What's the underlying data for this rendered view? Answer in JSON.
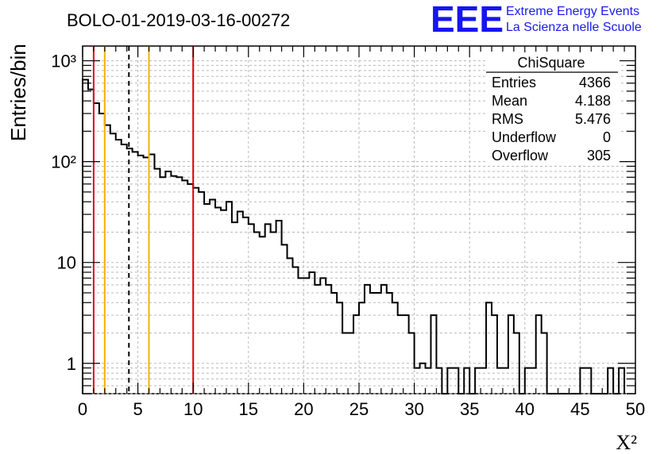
{
  "header": {
    "run_title": "BOLO-01-2019-03-16-00272",
    "logo_letters": "EEE",
    "logo_line1": "Extreme Energy Events",
    "logo_line2": "La Scienza nelle Scuole",
    "logo_color": "#1515f0"
  },
  "stats_box": {
    "title": "ChiSquare",
    "rows": [
      {
        "label": "Entries",
        "value": "4366"
      },
      {
        "label": "Mean",
        "value": "4.188"
      },
      {
        "label": "RMS",
        "value": "5.476"
      },
      {
        "label": "Underflow",
        "value": "0"
      },
      {
        "label": "Overflow",
        "value": "305"
      }
    ]
  },
  "chart_data": {
    "type": "histogram",
    "title": "BOLO-01-2019-03-16-00272",
    "xlabel": "X²",
    "ylabel": "Entries/bin",
    "xlim": [
      0,
      50
    ],
    "ylim": [
      0.5,
      1400
    ],
    "log_y": true,
    "grid": true,
    "bin_width": 0.5,
    "x_ticks": [
      "0",
      "5",
      "10",
      "15",
      "20",
      "25",
      "30",
      "35",
      "40",
      "45",
      "50"
    ],
    "y_ticks": [
      {
        "value": 1,
        "label": "1"
      },
      {
        "value": 10,
        "label": "10"
      },
      {
        "value": 100,
        "label": "10²"
      },
      {
        "value": 1000,
        "label": "10³"
      }
    ],
    "bin_counts": [
      650,
      520,
      380,
      300,
      230,
      190,
      165,
      148,
      135,
      125,
      115,
      110,
      118,
      85,
      70,
      80,
      72,
      70,
      65,
      60,
      55,
      50,
      38,
      42,
      35,
      33,
      40,
      25,
      32,
      28,
      24,
      20,
      18,
      24,
      20,
      26,
      15,
      11,
      9,
      7,
      7,
      8,
      6,
      7,
      6,
      5,
      4,
      2,
      2,
      3,
      4,
      6,
      5,
      5,
      6,
      5,
      4,
      3,
      3,
      2,
      0.9,
      1,
      0.9,
      3,
      0.9,
      0,
      0.9,
      0.9,
      0,
      0.9,
      0,
      0.9,
      0.9,
      4,
      3,
      0.9,
      0.9,
      3,
      2,
      0,
      0.9,
      0.9,
      3,
      2,
      0,
      0,
      0,
      0,
      0,
      0,
      0.9,
      0.9,
      0,
      0,
      0,
      0.9,
      0,
      0.9
    ],
    "vertical_lines": [
      {
        "x": 1.0,
        "color": "#e00000",
        "style": "solid"
      },
      {
        "x": 2.0,
        "color": "#f0b400",
        "style": "solid"
      },
      {
        "x": 4.188,
        "color": "#000000",
        "style": "dashed"
      },
      {
        "x": 6.0,
        "color": "#f0b400",
        "style": "solid"
      },
      {
        "x": 10.0,
        "color": "#e00000",
        "style": "solid"
      }
    ]
  }
}
